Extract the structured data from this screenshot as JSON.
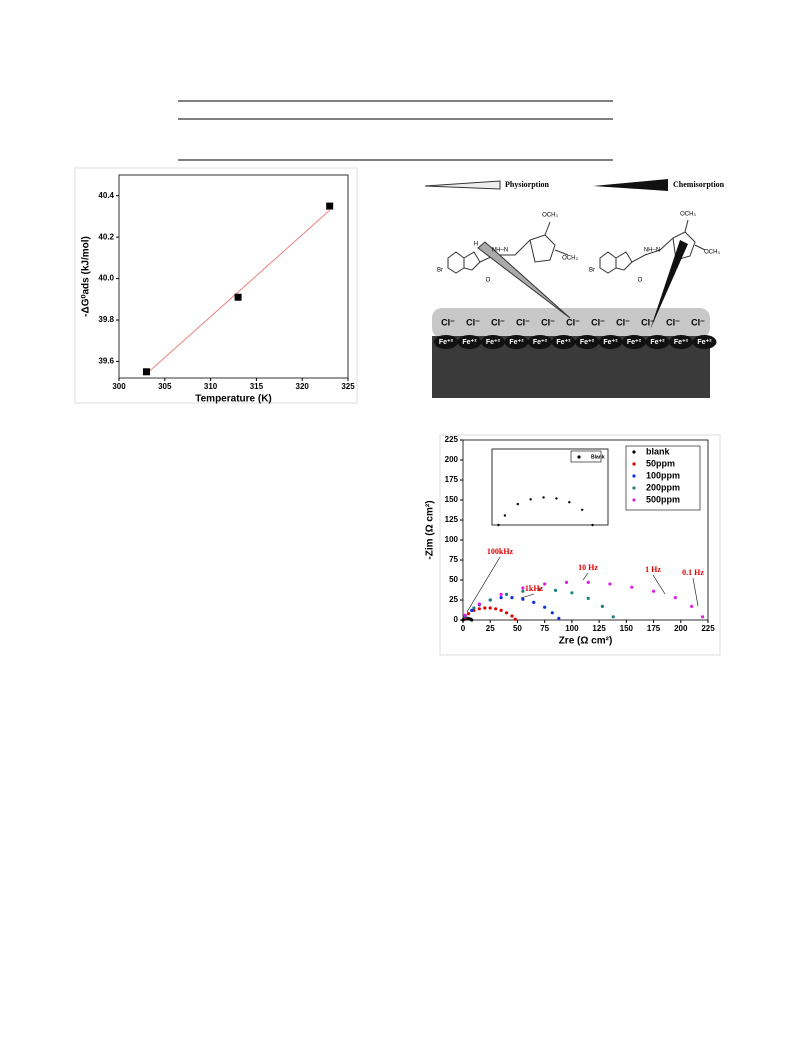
{
  "chart_data": [
    {
      "type": "scatter",
      "x_label": "Temperature (K)",
      "y_label": "-ΔG⁰ads (kJ/mol)",
      "marker": "square",
      "x": [
        303,
        313,
        323
      ],
      "series": [
        {
          "color": "#000000",
          "values": [
            39.55,
            39.91,
            40.35
          ]
        }
      ],
      "fit": {
        "x": [
          303,
          323
        ],
        "values": [
          39.54,
          40.33
        ],
        "color": "#f08080"
      },
      "xlim": [
        300,
        325
      ],
      "ylim": [
        39.52,
        40.5
      ],
      "xticks": [
        300,
        305,
        310,
        315,
        320,
        325
      ],
      "yticks": [
        39.6,
        39.8,
        {
          "value": 40,
          "label": "40.0"
        },
        40.2,
        40.4
      ]
    },
    {
      "type": "scatter",
      "x_label": "Zre (Ω cm²)",
      "y_label": "-Zim (Ω cm²)",
      "marker": "dot",
      "series": [
        {
          "name": "blank",
          "color": "#000000",
          "x": [
            0,
            1,
            2,
            3,
            4,
            5,
            6,
            7,
            8
          ],
          "values": [
            0,
            1,
            1.5,
            1.8,
            2,
            1.8,
            1.5,
            1,
            0
          ]
        },
        {
          "name": "50ppm",
          "color": "#e00000",
          "x": [
            2,
            5,
            10,
            15,
            20,
            25,
            30,
            35,
            40,
            45,
            48
          ],
          "values": [
            3,
            8,
            12,
            14,
            15,
            15,
            14,
            12,
            9,
            5,
            1
          ]
        },
        {
          "name": "100ppm",
          "color": "#1030e0",
          "x": [
            2,
            8,
            15,
            25,
            35,
            45,
            55,
            65,
            75,
            82,
            88
          ],
          "values": [
            4,
            12,
            19,
            25,
            28,
            28,
            26,
            22,
            16,
            9,
            2
          ]
        },
        {
          "name": "200ppm",
          "color": "#1a8080",
          "x": [
            2,
            10,
            25,
            40,
            55,
            70,
            85,
            100,
            115,
            128,
            138
          ],
          "values": [
            5,
            15,
            25,
            32,
            36,
            38,
            37,
            34,
            27,
            17,
            4
          ]
        },
        {
          "name": "500ppm",
          "color": "#e020e0",
          "x": [
            2,
            15,
            35,
            55,
            75,
            95,
            115,
            135,
            155,
            175,
            195,
            210,
            220
          ],
          "values": [
            6,
            20,
            32,
            40,
            45,
            47,
            47,
            45,
            41,
            36,
            28,
            17,
            4
          ]
        }
      ],
      "annotations": [
        "100kHz",
        "1kHz",
        "10 Hz",
        "1 Hz",
        "0.1 Hz"
      ],
      "annotation_color": "#e00000",
      "xlim": [
        0,
        225
      ],
      "ylim": [
        0,
        225
      ],
      "xticks": [
        0,
        25,
        50,
        75,
        100,
        125,
        150,
        175,
        200,
        225
      ],
      "yticks": [
        0,
        25,
        50,
        75,
        100,
        125,
        150,
        175,
        200,
        225
      ]
    },
    {
      "type": "scatter",
      "marker": "dot",
      "series": [
        {
          "name": "Blank",
          "color": "#000000",
          "x": [
            0.5,
            1,
            2,
            3,
            4,
            5,
            6,
            7,
            7.8
          ],
          "values": [
            0,
            1,
            2.2,
            2.7,
            2.9,
            2.8,
            2.4,
            1.6,
            0
          ]
        }
      ],
      "xlim": [
        0,
        9
      ],
      "ylim": [
        0,
        8
      ]
    }
  ],
  "diagram": {
    "legend": [
      "Physiorption",
      "Chemisorption"
    ],
    "anions": [
      "Cl⁻",
      "Cl⁻",
      "Cl⁻",
      "Cl⁻",
      "Cl⁻",
      "Cl⁻",
      "Cl⁻",
      "Cl⁻",
      "Cl⁻",
      "Cl⁻",
      "Cl⁻"
    ],
    "cations": [
      "Fe⁺²",
      "Fe⁺²",
      "Fe⁺²",
      "Fe⁺²",
      "Fe⁺²",
      "Fe⁺²",
      "Fe⁺²",
      "Fe⁺²",
      "Fe⁺²",
      "Fe⁺²",
      "Fe⁺²",
      "Fe⁺²"
    ],
    "atoms": [
      "Br",
      "H",
      "NH–N",
      "O",
      "OCH₃",
      "OCH₃",
      "Br",
      "NH–N",
      "O",
      "OCH₃",
      "OCH₃"
    ]
  }
}
